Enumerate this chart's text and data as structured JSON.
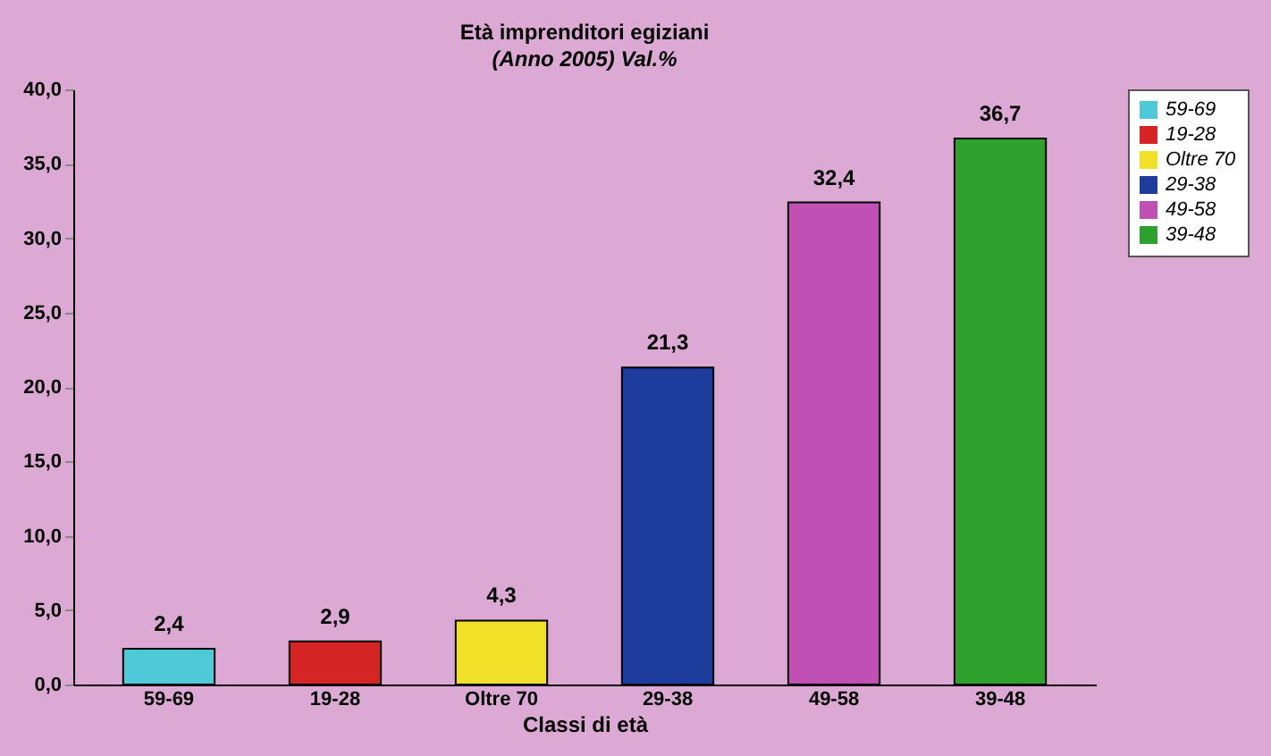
{
  "chart_data": {
    "type": "bar",
    "title": "Età imprenditori egiziani",
    "subtitle": "(Anno 2005) Val.%",
    "xlabel": "Classi di età",
    "categories": [
      "59-69",
      "19-28",
      "Oltre 70",
      "29-38",
      "49-58",
      "39-48"
    ],
    "stacked": true,
    "series": [
      {
        "name": "59-69",
        "color": "#4fc8d8",
        "values": [
          2.4,
          null,
          null,
          null,
          null,
          null
        ],
        "value_labels": [
          "2,4",
          null,
          null,
          null,
          null,
          null
        ]
      },
      {
        "name": "19-28",
        "color": "#d42424",
        "values": [
          null,
          2.9,
          null,
          null,
          null,
          null
        ],
        "value_labels": [
          null,
          "2,9",
          null,
          null,
          null,
          null
        ]
      },
      {
        "name": "Oltre 70",
        "color": "#f0e028",
        "values": [
          null,
          null,
          4.3,
          null,
          null,
          null
        ],
        "value_labels": [
          null,
          null,
          "4,3",
          null,
          null,
          null
        ]
      },
      {
        "name": "29-38",
        "color": "#1e3c9c",
        "values": [
          null,
          null,
          null,
          21.3,
          null,
          null
        ],
        "value_labels": [
          null,
          null,
          null,
          "21,3",
          null,
          null
        ]
      },
      {
        "name": "49-58",
        "color": "#c050b4",
        "values": [
          null,
          null,
          null,
          null,
          32.4,
          null
        ],
        "value_labels": [
          null,
          null,
          null,
          null,
          "32,4",
          null
        ]
      },
      {
        "name": "39-48",
        "color": "#2ea02e",
        "values": [
          null,
          null,
          null,
          null,
          null,
          36.7
        ],
        "value_labels": [
          null,
          null,
          null,
          null,
          null,
          "36,7"
        ]
      }
    ],
    "ylim": [
      0,
      40
    ],
    "yticks": [
      {
        "value": 0,
        "label": "0,0"
      },
      {
        "value": 5,
        "label": "5,0"
      },
      {
        "value": 10,
        "label": "10,0"
      },
      {
        "value": 15,
        "label": "15,0"
      },
      {
        "value": 20,
        "label": "20,0"
      },
      {
        "value": 25,
        "label": "25,0"
      },
      {
        "value": 30,
        "label": "30,0"
      },
      {
        "value": 35,
        "label": "35,0"
      },
      {
        "value": 40,
        "label": "40,0"
      }
    ],
    "grid": false,
    "legend": "right"
  }
}
